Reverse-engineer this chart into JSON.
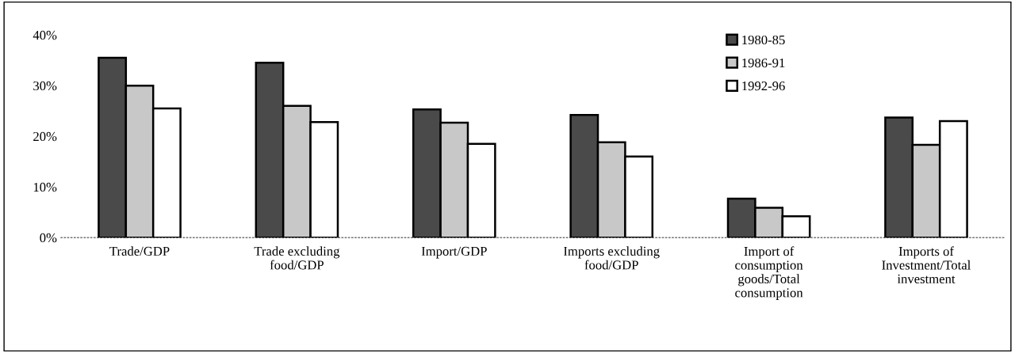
{
  "chart_data": {
    "type": "bar",
    "categories": [
      "Trade/GDP",
      "Trade excluding\nfood/GDP",
      "Import/GDP",
      "Imports excluding\nfood/GDP",
      "Import of\nconsumption\ngoods/Total\nconsumption",
      "Imports of\nInvestment/Total\ninvestment"
    ],
    "series": [
      {
        "name": "1980-85",
        "color": "#4a4a4a",
        "values": [
          35.5,
          34.5,
          25.3,
          24.2,
          7.7,
          23.7
        ]
      },
      {
        "name": "1986-91",
        "color": "#c8c8c8",
        "values": [
          30,
          26,
          22.7,
          18.8,
          5.9,
          18.3
        ]
      },
      {
        "name": "1992-96",
        "color": "#ffffff",
        "values": [
          25.5,
          22.8,
          18.5,
          16,
          4.2,
          23
        ]
      }
    ],
    "ylim": [
      0,
      40
    ],
    "yticks": [
      {
        "value": 0,
        "label": "0%"
      },
      {
        "value": 10,
        "label": "10%"
      },
      {
        "value": 20,
        "label": "20%"
      },
      {
        "value": 30,
        "label": "30%"
      },
      {
        "value": 40,
        "label": "40%"
      }
    ],
    "legend": "top right",
    "grid": false
  }
}
